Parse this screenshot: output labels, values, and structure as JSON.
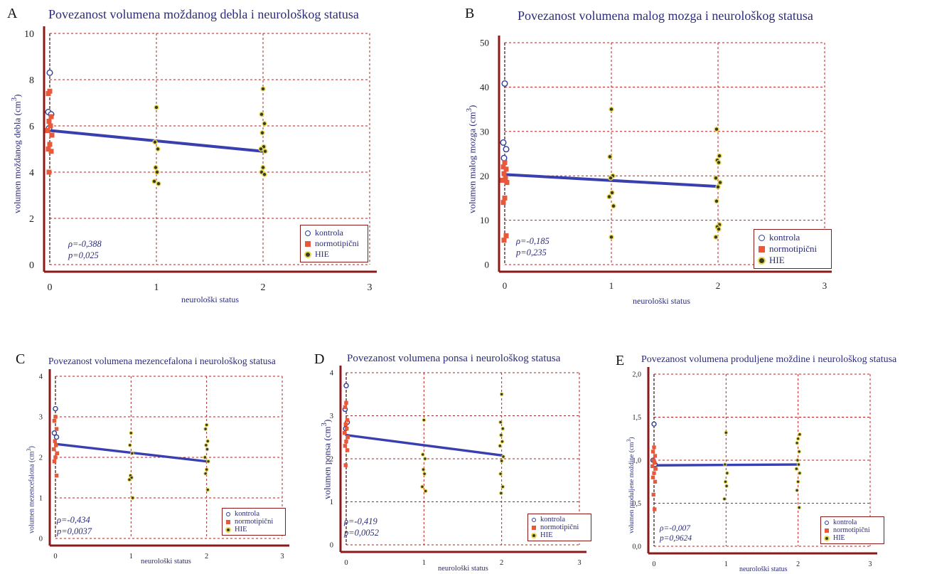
{
  "legend": {
    "kontrola": "kontrola",
    "normotipicni": "normotipični",
    "hie": "HIE"
  },
  "colors": {
    "grid": "#b22222",
    "axis": "#8b1a1a",
    "kontrola": "#2a3f9a",
    "normotipicni": "#e8583a",
    "hie_fill": "#3a3a2a",
    "hie_ring": "#e6d84a",
    "regression": "#3a3fb0",
    "text": "#2b2b7a"
  },
  "chart_data": [
    {
      "panel": "A",
      "type": "scatter",
      "title": "Povezanost volumena moždanog debla i neurološkog statusa",
      "xlabel": "neurološki status",
      "ylabel": "volumen moždanog debla (cm3)",
      "ylabel_main": "volumen moždanog debla (cm",
      "ylabel_sup": "3",
      "ylabel_close": ")",
      "xlim": [
        0,
        3
      ],
      "ylim": [
        0,
        10
      ],
      "xticks": [
        0,
        1,
        2,
        3
      ],
      "yticks": [
        0,
        2,
        4,
        6,
        8,
        10
      ],
      "grid": true,
      "stats": {
        "rho": "ρ=-0,388",
        "p": "p=0,025"
      },
      "regression": {
        "x": [
          0,
          2
        ],
        "y": [
          5.8,
          4.9
        ]
      },
      "series": [
        {
          "name": "kontrola",
          "x": [
            0,
            0,
            0,
            0
          ],
          "y": [
            8.3,
            6.6,
            6.5,
            5.9
          ]
        },
        {
          "name": "normotipični",
          "x": [
            0,
            0,
            0,
            0,
            0,
            0,
            0,
            0,
            0,
            0,
            0
          ],
          "y": [
            7.5,
            7.4,
            6.4,
            6.2,
            6.0,
            5.8,
            5.6,
            5.2,
            5.0,
            4.9,
            4.0
          ]
        },
        {
          "name": "HIE",
          "x": [
            1,
            1,
            1,
            1,
            1,
            1,
            1,
            2,
            2,
            2,
            2,
            2,
            2,
            2,
            2,
            2,
            2
          ],
          "y": [
            6.8,
            5.3,
            5.0,
            4.2,
            4.0,
            3.6,
            3.5,
            7.6,
            6.5,
            6.1,
            5.7,
            5.1,
            5.0,
            4.9,
            4.2,
            4.0,
            3.9
          ]
        }
      ]
    },
    {
      "panel": "B",
      "type": "scatter",
      "title": "Povezanost volumena malog mozga i neurološkog statusa",
      "xlabel": "neurološki status",
      "ylabel": "volumen malog mozga (cm3)",
      "ylabel_main": "volumen malog mozga (cm",
      "ylabel_sup": "3",
      "ylabel_close": ")",
      "xlim": [
        0,
        3
      ],
      "ylim": [
        0,
        50
      ],
      "xticks": [
        0,
        1,
        2,
        3
      ],
      "yticks": [
        0,
        10,
        20,
        30,
        40,
        50
      ],
      "grid": true,
      "stats": {
        "rho": "ρ=-0,185",
        "p": "p=0,235"
      },
      "regression": {
        "x": [
          0,
          2
        ],
        "y": [
          20.3,
          17.6
        ]
      },
      "series": [
        {
          "name": "kontrola",
          "x": [
            0,
            0,
            0,
            0
          ],
          "y": [
            40.8,
            27.5,
            26.0,
            24.0
          ]
        },
        {
          "name": "normotipični",
          "x": [
            0,
            0,
            0,
            0,
            0,
            0,
            0,
            0,
            0,
            0,
            0
          ],
          "y": [
            23.0,
            22.0,
            21.5,
            20.5,
            19.5,
            19.0,
            18.5,
            15.0,
            14.0,
            6.5,
            5.5
          ]
        },
        {
          "name": "HIE",
          "x": [
            1,
            1,
            1,
            1,
            1,
            1,
            1,
            1,
            2,
            2,
            2,
            2,
            2,
            2,
            2,
            2,
            2,
            2,
            2,
            2
          ],
          "y": [
            35.0,
            24.3,
            20.0,
            19.5,
            16.2,
            15.3,
            13.2,
            6.2,
            30.5,
            24.5,
            23.5,
            23.0,
            19.5,
            18.5,
            17.5,
            14.3,
            9.0,
            8.5,
            8.0,
            6.2
          ]
        }
      ]
    },
    {
      "panel": "C",
      "type": "scatter",
      "title": "Povezanost volumena mezencefalona i neurološkog statusa",
      "xlabel": "neurološki status",
      "ylabel": "volumen mezencefalona (cm3)",
      "ylabel_main": "volumen mezencefalona (cm",
      "ylabel_sup": "3",
      "ylabel_close": ")",
      "xlim": [
        0,
        3
      ],
      "ylim": [
        0,
        4
      ],
      "xticks": [
        0,
        1,
        2,
        3
      ],
      "yticks": [
        0,
        1,
        2,
        3,
        4
      ],
      "grid": true,
      "stats": {
        "rho": "ρ=-0,434",
        "p": "p=0,0037"
      },
      "regression": {
        "x": [
          0,
          2
        ],
        "y": [
          2.33,
          1.9
        ]
      },
      "series": [
        {
          "name": "kontrola",
          "x": [
            0,
            0,
            0
          ],
          "y": [
            3.2,
            2.6,
            2.5
          ]
        },
        {
          "name": "normotipični",
          "x": [
            0,
            0,
            0,
            0,
            0,
            0,
            0,
            0,
            0,
            0
          ],
          "y": [
            3.0,
            2.9,
            2.7,
            2.4,
            2.3,
            2.2,
            2.1,
            2.0,
            1.9,
            1.55
          ]
        },
        {
          "name": "HIE",
          "x": [
            1,
            1,
            1,
            1,
            1,
            1,
            1,
            2,
            2,
            2,
            2,
            2,
            2,
            2,
            2,
            2,
            2
          ],
          "y": [
            2.6,
            2.3,
            2.1,
            1.55,
            1.5,
            1.45,
            1.0,
            2.8,
            2.7,
            2.4,
            2.3,
            2.2,
            2.0,
            1.9,
            1.7,
            1.6,
            1.2
          ]
        }
      ]
    },
    {
      "panel": "D",
      "type": "scatter",
      "title": "Povezanost volumena ponsa i neurološkog statusa",
      "xlabel": "neurološki status",
      "ylabel": "volumen ponsa (cm3)",
      "ylabel_main": "volumen ponsa (cm",
      "ylabel_sup": "3",
      "ylabel_close": ")",
      "xlim": [
        0,
        3
      ],
      "ylim": [
        0,
        4
      ],
      "xticks": [
        0,
        1,
        2,
        3
      ],
      "yticks": [
        0,
        1,
        2,
        3,
        4
      ],
      "grid": true,
      "stats": {
        "rho": "ρ=-0,419",
        "p": "p=0,0052"
      },
      "regression": {
        "x": [
          0,
          2
        ],
        "y": [
          2.55,
          2.08
        ]
      },
      "series": [
        {
          "name": "kontrola",
          "x": [
            0,
            0,
            0,
            0
          ],
          "y": [
            3.7,
            3.15,
            2.85,
            2.7
          ]
        },
        {
          "name": "normotipični",
          "x": [
            0,
            0,
            0,
            0,
            0,
            0,
            0,
            0,
            0,
            0,
            0
          ],
          "y": [
            3.3,
            3.2,
            2.9,
            2.8,
            2.7,
            2.6,
            2.5,
            2.4,
            2.3,
            2.2,
            1.85
          ]
        },
        {
          "name": "HIE",
          "x": [
            1,
            1,
            1,
            1,
            1,
            1,
            1,
            2,
            2,
            2,
            2,
            2,
            2,
            2,
            2,
            2,
            2,
            2
          ],
          "y": [
            2.9,
            2.1,
            2.0,
            1.75,
            1.65,
            1.35,
            1.25,
            3.5,
            2.85,
            2.7,
            2.55,
            2.4,
            2.3,
            2.05,
            1.95,
            1.65,
            1.35,
            1.2
          ]
        }
      ]
    },
    {
      "panel": "E",
      "type": "scatter",
      "title": "Povezanost volumena produljene moždine i neurološkog statusa",
      "xlabel": "neurološki status",
      "ylabel": "volumen produljene moždine (cm3)",
      "ylabel_main": "volumen produljene moždine (cm",
      "ylabel_sup": "3",
      "ylabel_close": ")",
      "xlim": [
        0,
        3
      ],
      "ylim": [
        0,
        2
      ],
      "xticks": [
        0,
        1,
        2,
        3
      ],
      "yticks": [
        0,
        0.5,
        1,
        1.5,
        2
      ],
      "yticklabels": [
        "0,0",
        "0,5",
        "1,0",
        "1,5",
        "2,0"
      ],
      "grid": true,
      "stats": {
        "rho": "ρ=-0,007",
        "p": "p=0,9624"
      },
      "regression": {
        "x": [
          0,
          2
        ],
        "y": [
          0.94,
          0.95
        ]
      },
      "series": [
        {
          "name": "kontrola",
          "x": [
            0,
            0,
            0
          ],
          "y": [
            1.42,
            1.0,
            0.95
          ]
        },
        {
          "name": "normotipični",
          "x": [
            0,
            0,
            0,
            0,
            0,
            0,
            0,
            0,
            0,
            0,
            0,
            0
          ],
          "y": [
            1.15,
            1.1,
            1.05,
            1.0,
            0.97,
            0.93,
            0.9,
            0.85,
            0.8,
            0.75,
            0.6,
            0.43
          ]
        },
        {
          "name": "HIE",
          "x": [
            1,
            1,
            1,
            1,
            1,
            1,
            2,
            2,
            2,
            2,
            2,
            2,
            2,
            2,
            2,
            2,
            2
          ],
          "y": [
            1.32,
            0.95,
            0.85,
            0.75,
            0.7,
            0.55,
            1.3,
            1.25,
            1.2,
            1.1,
            1.0,
            0.95,
            0.9,
            0.85,
            0.75,
            0.65,
            0.45
          ]
        }
      ]
    }
  ]
}
